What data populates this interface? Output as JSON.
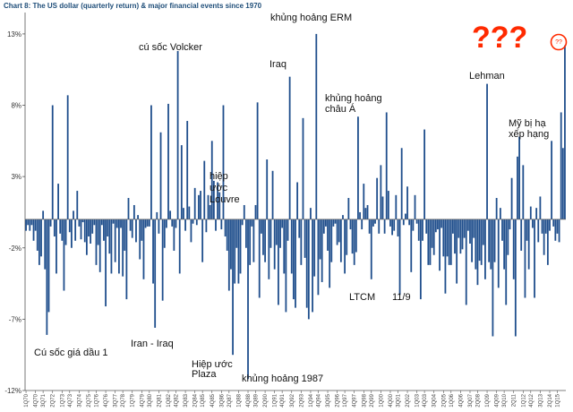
{
  "chart_data": {
    "type": "bar",
    "title": "Chart 8: The US dollar (quarterly return) & major financial events since 1970",
    "yticks": [
      "13%",
      "8%",
      "3%",
      "-2%",
      "-7%",
      "-12%"
    ],
    "ytick_values": [
      13,
      8,
      3,
      -2,
      -7,
      -12
    ],
    "ylim": [
      -12,
      14.5
    ],
    "xtick_labels": [
      "1Q70",
      "4Q70",
      "3Q71",
      "2Q72",
      "1Q73",
      "4Q73",
      "3Q74",
      "2Q75",
      "1Q76",
      "4Q76",
      "3Q77",
      "2Q78",
      "1Q79",
      "4Q79",
      "3Q80",
      "2Q81",
      "1Q82",
      "4Q82",
      "3Q83",
      "2Q84",
      "1Q85",
      "4Q85",
      "3Q86",
      "2Q87",
      "1Q88",
      "4Q88",
      "3Q89",
      "2Q90",
      "1Q91",
      "4Q91",
      "3Q92",
      "2Q93",
      "1Q94",
      "4Q94",
      "3Q95",
      "2Q96",
      "1Q97",
      "4Q97",
      "3Q98",
      "2Q99",
      "1Q00",
      "4Q00",
      "3Q01",
      "2Q02",
      "1Q03",
      "4Q03",
      "3Q04",
      "2Q05",
      "1Q06",
      "4Q06",
      "3Q07",
      "2Q08",
      "1Q09",
      "4Q09",
      "3Q10",
      "2Q11",
      "1Q12",
      "4Q12",
      "3Q13",
      "2Q14",
      "1Q15"
    ],
    "series": [
      {
        "values": [
          -0.8,
          -0.4,
          -0.8,
          -0.4,
          -1.5,
          -0.8,
          -2.2,
          -3.2,
          -2.6,
          0.6,
          -3.5,
          -8.1,
          -6.5,
          -0.5,
          8.0,
          -1.2,
          -3.8,
          2.5,
          -1.0,
          -1.5,
          -5.0,
          -1.8,
          8.7,
          -0.9,
          -2.0,
          0.6,
          -1.5,
          2.0,
          -0.5,
          -1.4,
          -0.2,
          -1.6,
          -2.5,
          -1.2,
          -1.7,
          -1.0,
          -0.4,
          -3.2,
          -1.8,
          -3.7,
          -0.4,
          -1.5,
          -6.1,
          -1.2,
          -2.4,
          -3.8,
          -0.3,
          -3.0,
          -0.6,
          -3.8,
          -0.6,
          -4.0,
          -2.2,
          -5.6,
          1.5,
          -0.8,
          -1.3,
          1.0,
          -1.6,
          0.3,
          -2.8,
          -1.5,
          -4.2,
          -0.6,
          -0.5,
          -0.5,
          8.0,
          -4.5,
          -7.6,
          0.5,
          -1.0,
          6.1,
          -5.7,
          -2.0,
          -0.6,
          8.1,
          0.6,
          -0.5,
          -2.2,
          -0.6,
          11.8,
          -3.8,
          5.2,
          0.8,
          -0.8,
          6.9,
          0.9,
          -1.6,
          -0.3,
          2.2,
          -0.4,
          1.7,
          2.0,
          -3.0,
          4.1,
          -0.9,
          1.7,
          1.0,
          5.5,
          2.7,
          -0.8,
          2.6,
          1.9,
          -0.7,
          8.0,
          -1.2,
          -2.2,
          -5.0,
          -3.5,
          -9.5,
          -4.5,
          -2.0,
          -4.5,
          -3.8,
          -0.4,
          1.0,
          -2.0,
          -11.2,
          -3.2,
          -0.5,
          -3.0,
          1.0,
          8.2,
          -5.5,
          -1.0,
          -2.5,
          -3.0,
          4.2,
          -4.2,
          -2.0,
          3.4,
          -3.5,
          -1.8,
          -6.0,
          -2.0,
          -0.6,
          -3.8,
          -6.5,
          -1.5,
          10.0,
          -3.8,
          -5.6,
          -6.2,
          2.6,
          -1.3,
          -3.2,
          7.1,
          -2.7,
          -6.2,
          -7.0,
          0.8,
          -6.5,
          -4.0,
          13.0,
          -5.3,
          -2.8,
          -4.4,
          -1.0,
          -0.5,
          -2.2,
          -4.8,
          -3.0,
          -0.5,
          -0.3,
          -1.8,
          -1.6,
          -3.0,
          0.3,
          -3.8,
          -2.5,
          1.5,
          -0.7,
          -2.4,
          -3.2,
          -2.3,
          7.2,
          0.5,
          -0.7,
          2.5,
          0.8,
          1.0,
          -1.0,
          -4.2,
          -0.5,
          -0.3,
          2.9,
          -1.0,
          3.8,
          1.6,
          -1.0,
          7.5,
          2.0,
          -0.5,
          -1.1,
          -0.8,
          1.7,
          -1.2,
          -5.3,
          5.0,
          -0.4,
          0.4,
          2.3,
          -0.4,
          -3.7,
          -0.8,
          1.7,
          -0.3,
          -1.5,
          -5.6,
          -1.5,
          6.3,
          -1.0,
          -3.2,
          -3.2,
          -2.0,
          -2.5,
          -0.9,
          -0.7,
          -3.6,
          -0.6,
          -2.6,
          -5.2,
          -2.6,
          -3.2,
          -3.2,
          -1.0,
          -2.4,
          -4.5,
          -1.3,
          -2.4,
          -2.1,
          -1.3,
          -6.0,
          -0.8,
          -1.7,
          -3.0,
          -1.3,
          -3.5,
          -4.6,
          -2.9,
          -3.2,
          -1.8,
          -4.2,
          9.5,
          -3.0,
          -3.5,
          -8.2,
          -3.0,
          1.5,
          -4.8,
          0.8,
          -1.5,
          -3.5,
          -6.0,
          -2.5,
          -0.7,
          2.9,
          -4.2,
          -8.2,
          4.4,
          5.8,
          -2.2,
          3.8,
          -5.5,
          -1.5,
          -3.5,
          0.9,
          -0.6,
          -5.5,
          0.8,
          -1.6,
          1.6,
          -1.0,
          -2.5,
          -1.0,
          -3.2,
          -0.8,
          5.5,
          -0.5,
          -1.5,
          -1.0,
          -1.6,
          7.5,
          5.0,
          12.2
        ]
      }
    ],
    "annotations": [
      {
        "text": "Cú sốc giá dầu 1",
        "quarter": 12
      },
      {
        "text": "cú sốc Volcker",
        "quarter": 80
      },
      {
        "text": "Iran - Iraq",
        "quarter": 68
      },
      {
        "text": "Hiệp ước",
        "quarter": 114
      },
      {
        "text": "Plaza",
        "quarter": 114
      },
      {
        "text": "hiệp",
        "quarter": 124
      },
      {
        "text": "ước",
        "quarter": 124
      },
      {
        "text": "Louvre",
        "quarter": 124
      },
      {
        "text": "khủng hoảng 1987",
        "quarter": 122
      },
      {
        "text": "Iraq",
        "quarter": 148
      },
      {
        "text": "khủng hoảng ERM",
        "quarter": 163
      },
      {
        "text": "khủng hoảng",
        "quarter": 192
      },
      {
        "text": "châu Á",
        "quarter": 192
      },
      {
        "text": "LTCM",
        "quarter": 207
      },
      {
        "text": "11/9",
        "quarter": 227
      },
      {
        "text": "Lehman",
        "quarter": 264
      },
      {
        "text": "Mỹ bị hạ",
        "quarter": 286
      },
      {
        "text": "xếp hạng",
        "quarter": 286
      }
    ],
    "overlay": {
      "question_marks": "???",
      "circle_label": "??"
    },
    "bar_color": "#1f4e8c",
    "accent_color": "#ff2a00",
    "grid": false,
    "legend": "none"
  }
}
